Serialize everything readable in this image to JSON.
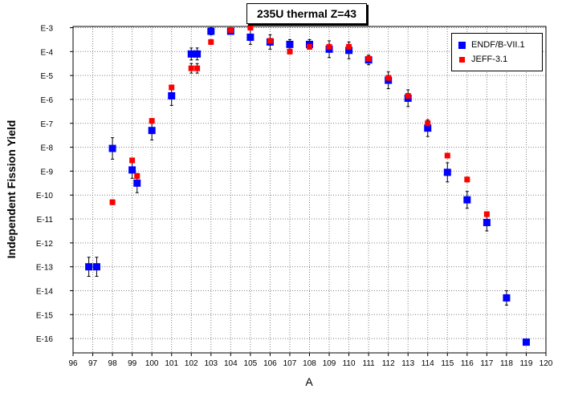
{
  "chart_data": {
    "type": "scatter",
    "title": "235U thermal Z=43",
    "xlabel": "A",
    "ylabel": "Independent Fission Yield",
    "y_scale": "log",
    "xlim": [
      96,
      120
    ],
    "ylim": [
      -16.6,
      -2.95
    ],
    "x_ticks": [
      96,
      97,
      98,
      99,
      100,
      101,
      102,
      103,
      104,
      105,
      106,
      107,
      108,
      109,
      110,
      111,
      112,
      113,
      114,
      115,
      116,
      117,
      118,
      119,
      120
    ],
    "y_ticks": [
      {
        "value": -3,
        "label": "E-3"
      },
      {
        "value": -4,
        "label": "E-4"
      },
      {
        "value": -5,
        "label": "E-5"
      },
      {
        "value": -6,
        "label": "E-6"
      },
      {
        "value": -7,
        "label": "E-7"
      },
      {
        "value": -8,
        "label": "E-8"
      },
      {
        "value": -9,
        "label": "E-9"
      },
      {
        "value": -10,
        "label": "E-10"
      },
      {
        "value": -11,
        "label": "E-11"
      },
      {
        "value": -12,
        "label": "E-12"
      },
      {
        "value": -13,
        "label": "E-13"
      },
      {
        "value": -14,
        "label": "E-14"
      },
      {
        "value": -15,
        "label": "E-15"
      },
      {
        "value": -16,
        "label": "E-16"
      }
    ],
    "grid": true,
    "legend_position": "top-right",
    "series": [
      {
        "name": "ENDF/B-VII.1",
        "color": "#0000ff",
        "marker": "square",
        "points": [
          {
            "x": 96.8,
            "y": -13.0,
            "err": 0.4
          },
          {
            "x": 97.2,
            "y": -13.0,
            "err": 0.4
          },
          {
            "x": 98.0,
            "y": -8.05,
            "err": 0.45
          },
          {
            "x": 99.0,
            "y": -8.95,
            "err": 0.35
          },
          {
            "x": 99.25,
            "y": -9.5,
            "err": 0.4
          },
          {
            "x": 100.0,
            "y": -7.3,
            "err": 0.4
          },
          {
            "x": 101.0,
            "y": -5.85,
            "err": 0.4
          },
          {
            "x": 102.0,
            "y": -4.1,
            "err": 0.25
          },
          {
            "x": 102.3,
            "y": -4.1,
            "err": 0.25
          },
          {
            "x": 103.0,
            "y": -3.15,
            "err": 0.15
          },
          {
            "x": 104.0,
            "y": -3.15,
            "err": 0.1
          },
          {
            "x": 105.0,
            "y": -3.4,
            "err": 0.3
          },
          {
            "x": 106.0,
            "y": -3.6,
            "err": 0.3
          },
          {
            "x": 107.0,
            "y": -3.7,
            "err": 0.2
          },
          {
            "x": 108.0,
            "y": -3.7,
            "err": 0.2
          },
          {
            "x": 109.0,
            "y": -3.9,
            "err": 0.35
          },
          {
            "x": 110.0,
            "y": -3.95,
            "err": 0.35
          },
          {
            "x": 111.0,
            "y": -4.35,
            "err": 0.2
          },
          {
            "x": 112.0,
            "y": -5.2,
            "err": 0.35
          },
          {
            "x": 113.0,
            "y": -5.95,
            "err": 0.35
          },
          {
            "x": 114.0,
            "y": -7.2,
            "err": 0.35
          },
          {
            "x": 115.0,
            "y": -9.05,
            "err": 0.4
          },
          {
            "x": 116.0,
            "y": -10.2,
            "err": 0.35
          },
          {
            "x": 117.0,
            "y": -11.15,
            "err": 0.35
          },
          {
            "x": 118.0,
            "y": -14.3,
            "err": 0.3
          },
          {
            "x": 119.0,
            "y": -16.15,
            "err": 0
          }
        ]
      },
      {
        "name": "JEFF-3.1",
        "color": "#ff0000",
        "marker": "square-small",
        "points": [
          {
            "x": 98.0,
            "y": -10.3,
            "err": 0.1
          },
          {
            "x": 99.0,
            "y": -8.55,
            "err": 0.1
          },
          {
            "x": 99.25,
            "y": -9.2,
            "err": 0.1
          },
          {
            "x": 100.0,
            "y": -6.9,
            "err": 0.1
          },
          {
            "x": 101.0,
            "y": -5.5,
            "err": 0.1
          },
          {
            "x": 102.0,
            "y": -4.7,
            "err": 0.2
          },
          {
            "x": 102.3,
            "y": -4.7,
            "err": 0.2
          },
          {
            "x": 103.0,
            "y": -3.6,
            "err": 0.1
          },
          {
            "x": 104.0,
            "y": -3.1,
            "err": 0.1
          },
          {
            "x": 105.0,
            "y": -3.0,
            "err": 0.05
          },
          {
            "x": 106.0,
            "y": -3.55,
            "err": 0.1
          },
          {
            "x": 107.0,
            "y": -4.0,
            "err": 0.1
          },
          {
            "x": 108.0,
            "y": -3.8,
            "err": 0.1
          },
          {
            "x": 109.0,
            "y": -3.8,
            "err": 0.1
          },
          {
            "x": 110.0,
            "y": -3.8,
            "err": 0.1
          },
          {
            "x": 111.0,
            "y": -4.3,
            "err": 0.1
          },
          {
            "x": 112.0,
            "y": -5.1,
            "err": 0.1
          },
          {
            "x": 113.0,
            "y": -5.85,
            "err": 0.1
          },
          {
            "x": 114.0,
            "y": -7.0,
            "err": 0.1
          },
          {
            "x": 115.0,
            "y": -8.35,
            "err": 0.1
          },
          {
            "x": 116.0,
            "y": -9.35,
            "err": 0.1
          },
          {
            "x": 117.0,
            "y": -10.8,
            "err": 0.1
          }
        ]
      }
    ]
  }
}
